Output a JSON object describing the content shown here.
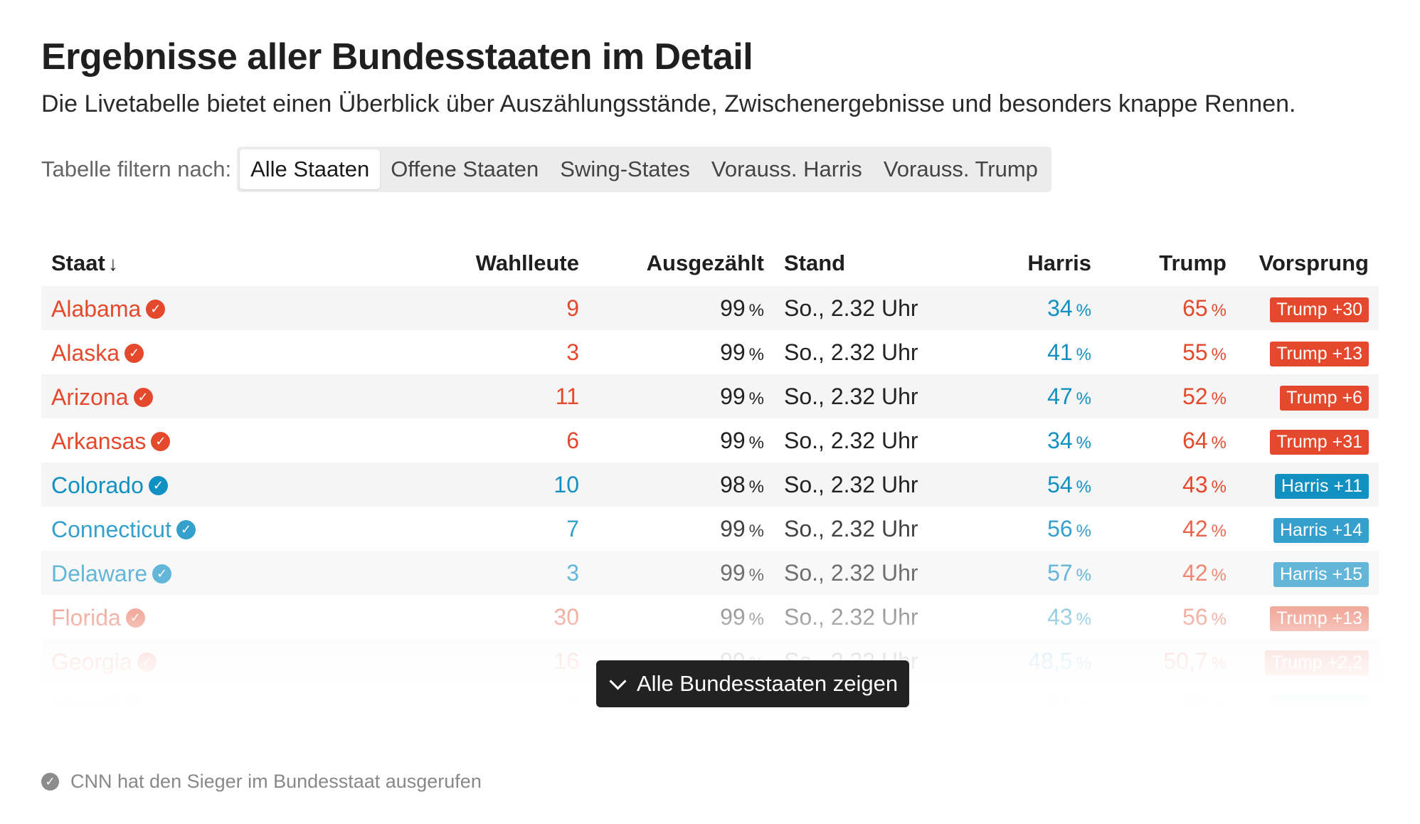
{
  "header": {
    "title": "Ergebnisse aller Bundesstaaten im Detail",
    "subtitle": "Die Livetabelle bietet einen Überblick über Auszählungsstände, Zwischenergebnisse und besonders knappe Rennen."
  },
  "filter": {
    "label": "Tabelle filtern nach:",
    "options": [
      "Alle Staaten",
      "Offene Staaten",
      "Swing-States",
      "Vorauss. Harris",
      "Vorauss. Trump"
    ],
    "selected": "Alle Staaten"
  },
  "table": {
    "columns": {
      "state": "Staat",
      "sort_arrow": "↓",
      "electors": "Wahlleute",
      "counted": "Ausgezählt",
      "time": "Stand",
      "harris": "Harris",
      "trump": "Trump",
      "lead": "Vorsprung"
    },
    "percent_sign": "%",
    "rows": [
      {
        "state": "Alabama",
        "electors": "9",
        "counted": "99",
        "time": "So., 2.32 Uhr",
        "harris": "34",
        "trump": "65",
        "lead": "Trump +30",
        "winner": "rep",
        "opacity": 1
      },
      {
        "state": "Alaska",
        "electors": "3",
        "counted": "99",
        "time": "So., 2.32 Uhr",
        "harris": "41",
        "trump": "55",
        "lead": "Trump +13",
        "winner": "rep",
        "opacity": 1
      },
      {
        "state": "Arizona",
        "electors": "11",
        "counted": "99",
        "time": "So., 2.32 Uhr",
        "harris": "47",
        "trump": "52",
        "lead": "Trump +6",
        "winner": "rep",
        "opacity": 1
      },
      {
        "state": "Arkansas",
        "electors": "6",
        "counted": "99",
        "time": "So., 2.32 Uhr",
        "harris": "34",
        "trump": "64",
        "lead": "Trump +31",
        "winner": "rep",
        "opacity": 1
      },
      {
        "state": "Colorado",
        "electors": "10",
        "counted": "98",
        "time": "So., 2.32 Uhr",
        "harris": "54",
        "trump": "43",
        "lead": "Harris +11",
        "winner": "dem",
        "opacity": 1
      },
      {
        "state": "Connecticut",
        "electors": "7",
        "counted": "99",
        "time": "So., 2.32 Uhr",
        "harris": "56",
        "trump": "42",
        "lead": "Harris +14",
        "winner": "dem",
        "opacity": 0.85
      },
      {
        "state": "Delaware",
        "electors": "3",
        "counted": "99",
        "time": "So., 2.32 Uhr",
        "harris": "57",
        "trump": "42",
        "lead": "Harris +15",
        "winner": "dem",
        "opacity": 0.65
      },
      {
        "state": "Florida",
        "electors": "30",
        "counted": "99",
        "time": "So., 2.32 Uhr",
        "harris": "43",
        "trump": "56",
        "lead": "Trump +13",
        "winner": "rep",
        "opacity": 0.45
      },
      {
        "state": "Georgia",
        "electors": "16",
        "counted": "99",
        "time": "So., 2.32 Uhr",
        "harris": "48,5",
        "trump": "50,7",
        "lead": "Trump +2,2",
        "winner": "rep",
        "opacity": 0.3
      },
      {
        "state": "Hawaii",
        "electors": "4",
        "counted": "99",
        "time": "So., 2.32 Uhr",
        "harris": "61",
        "trump": "38",
        "lead": "Harris +23",
        "winner": "dem",
        "opacity": 0.18
      }
    ]
  },
  "show_all": {
    "label": "Alle Bundesstaaten zeigen"
  },
  "footnote": {
    "text": "CNN hat den Sieger im Bundesstaat ausgerufen"
  },
  "colors": {
    "rep": "#e4492d",
    "dem": "#1190c2"
  },
  "icons": {
    "verified": "check-circle-icon",
    "expand": "chevron-down-icon"
  }
}
